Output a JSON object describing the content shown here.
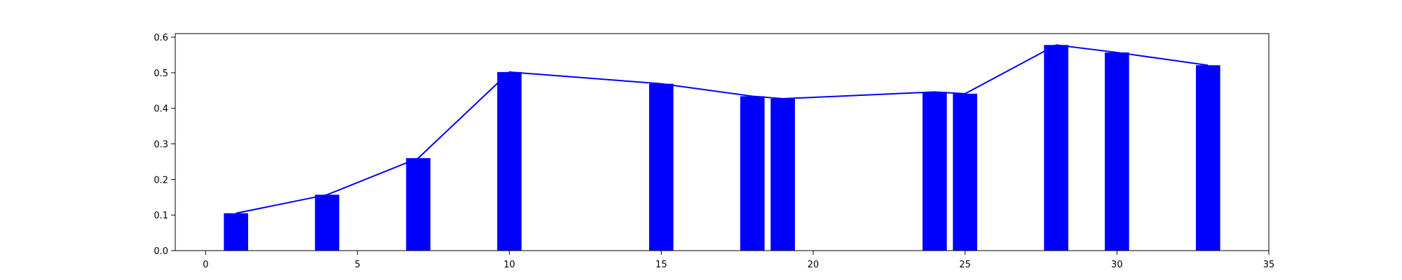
{
  "chart_data": {
    "type": "bar",
    "title": "",
    "xlabel": "",
    "ylabel": "",
    "xlim": [
      -1,
      35
    ],
    "ylim": [
      0,
      0.61
    ],
    "grid": false,
    "legend": null,
    "xticks": [
      0,
      5,
      10,
      15,
      20,
      25,
      30,
      35
    ],
    "xtick_labels": [
      "0",
      "5",
      "10",
      "15",
      "20",
      "25",
      "30",
      "35"
    ],
    "yticks": [
      0.0,
      0.1,
      0.2,
      0.3,
      0.4,
      0.5,
      0.6
    ],
    "ytick_labels": [
      "0.0",
      "0.1",
      "0.2",
      "0.3",
      "0.4",
      "0.5",
      "0.6"
    ],
    "bar_width": 0.8,
    "colors": {
      "bars": "#0000ff",
      "line": "#0000ff",
      "axes": "#000000",
      "background": "#ffffff"
    },
    "series": [
      {
        "kind": "bar",
        "x": [
          1,
          4,
          7,
          10,
          15,
          18,
          19,
          24,
          25,
          28,
          30,
          33
        ],
        "values": [
          0.105,
          0.157,
          0.26,
          0.502,
          0.469,
          0.434,
          0.427,
          0.446,
          0.441,
          0.578,
          0.557,
          0.521
        ]
      },
      {
        "kind": "line",
        "x": [
          1,
          4,
          7,
          10,
          15,
          18,
          19,
          24,
          25,
          28,
          30,
          33
        ],
        "values": [
          0.105,
          0.157,
          0.26,
          0.502,
          0.469,
          0.434,
          0.427,
          0.446,
          0.441,
          0.578,
          0.557,
          0.521
        ]
      }
    ]
  }
}
